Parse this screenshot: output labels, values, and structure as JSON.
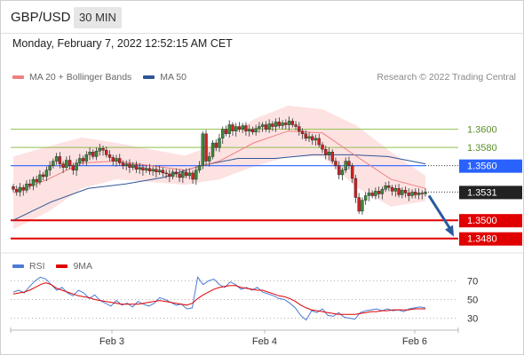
{
  "header": {
    "symbol": "GBP/USD",
    "timeframe": "30 MIN"
  },
  "datetime": "Monday, February 7, 2022 12:52:15 AM CET",
  "copyright": "Research © 2022 Trading Central",
  "colors": {
    "bollinger": "#f08080",
    "ma50": "#2f5597",
    "resistance": "#8fbf4f",
    "pivot": "#2962ff",
    "support": "#e00000",
    "last_price_bg": "#222222",
    "rsi": "#4a7cd6",
    "rsi_ma": "#e00000",
    "arrow": "#2a5aa0"
  },
  "chart_data": [
    {
      "type": "candlestick",
      "title": "GBP/USD",
      "x_tick_labels": [
        "Feb 3",
        "Feb 4",
        "Feb 6"
      ],
      "legend": [
        {
          "name": "MA 20 + Bollinger Bands",
          "color": "#f08080"
        },
        {
          "name": "MA 50",
          "color": "#2f5597"
        }
      ],
      "ylim": [
        1.3468,
        1.3626
      ],
      "levels": [
        {
          "value": 1.36,
          "label": "1.3600",
          "kind": "resistance"
        },
        {
          "value": 1.358,
          "label": "1.3580",
          "kind": "resistance"
        },
        {
          "value": 1.356,
          "label": "1.3560",
          "kind": "pivot"
        },
        {
          "value": 1.3531,
          "label": "1.3531",
          "kind": "last"
        },
        {
          "value": 1.35,
          "label": "1.3500",
          "kind": "support"
        },
        {
          "value": 1.348,
          "label": "1.3480",
          "kind": "support"
        }
      ],
      "series": [
        {
          "name": "GBP/USD",
          "close": [
            1.3534,
            1.3531,
            1.3536,
            1.3533,
            1.354,
            1.3538,
            1.3545,
            1.3542,
            1.355,
            1.3548,
            1.3555,
            1.356,
            1.3565,
            1.357,
            1.3562,
            1.3558,
            1.3566,
            1.356,
            1.3555,
            1.3563,
            1.3568,
            1.3565,
            1.3572,
            1.3575,
            1.357,
            1.3576,
            1.3579,
            1.3577,
            1.3572,
            1.3569,
            1.3565,
            1.3568,
            1.3563,
            1.356,
            1.3562,
            1.3558,
            1.3561,
            1.3556,
            1.3558,
            1.3555,
            1.3557,
            1.3554,
            1.3556,
            1.3553,
            1.3555,
            1.3552,
            1.3551,
            1.3548,
            1.3553,
            1.3551,
            1.3547,
            1.3553,
            1.3549,
            1.3552,
            1.3545,
            1.3555,
            1.356,
            1.3595,
            1.3565,
            1.357,
            1.3585,
            1.358,
            1.359,
            1.36,
            1.3595,
            1.3605,
            1.3598,
            1.3603,
            1.36,
            1.3604,
            1.3598,
            1.36,
            1.3597,
            1.3601,
            1.3603,
            1.3605,
            1.36,
            1.3606,
            1.3603,
            1.3608,
            1.3604,
            1.3607,
            1.3605,
            1.3609,
            1.3605,
            1.3603,
            1.3598,
            1.3595,
            1.359,
            1.3592,
            1.3588,
            1.359,
            1.3583,
            1.3578,
            1.3572,
            1.3575,
            1.3565,
            1.356,
            1.355,
            1.3555,
            1.3565,
            1.356,
            1.3546,
            1.3525,
            1.351,
            1.3522,
            1.3527,
            1.353,
            1.3527,
            1.3532,
            1.3529,
            1.3534,
            1.3538,
            1.3536,
            1.3532,
            1.3535,
            1.3528,
            1.3533,
            1.353,
            1.3527,
            1.3531,
            1.3528,
            1.353,
            1.3529,
            1.3531
          ]
        },
        {
          "name": "MA 50",
          "values": [
            1.35,
            1.352,
            1.3535,
            1.354,
            1.3547,
            1.356,
            1.3568,
            1.3568,
            1.3572,
            1.3572,
            1.357,
            1.3562
          ]
        },
        {
          "name": "MA 20",
          "values": [
            1.353,
            1.3545,
            1.3563,
            1.3565,
            1.356,
            1.3555,
            1.3565,
            1.3585,
            1.3598,
            1.3596,
            1.357,
            1.3545,
            1.3535
          ]
        }
      ]
    },
    {
      "type": "line",
      "title": "RSI",
      "legend": [
        {
          "name": "RSI",
          "color": "#4a7cd6"
        },
        {
          "name": "9MA",
          "color": "#e00000"
        }
      ],
      "y_ticks": [
        70,
        50,
        30
      ],
      "ylim": [
        20,
        80
      ],
      "series": [
        {
          "name": "RSI",
          "values": [
            58,
            60,
            57,
            64,
            70,
            74,
            72,
            66,
            60,
            63,
            57,
            54,
            60,
            57,
            51,
            55,
            49,
            46,
            43,
            49,
            44,
            46,
            42,
            48,
            45,
            43,
            46,
            52,
            50,
            47,
            44,
            45,
            40,
            41,
            74,
            66,
            70,
            72,
            66,
            63,
            69,
            66,
            61,
            63,
            60,
            63,
            58,
            56,
            54,
            51,
            50,
            46,
            41,
            33,
            28,
            38,
            36,
            40,
            33,
            32,
            36,
            31,
            30,
            29,
            36,
            38,
            39,
            40,
            38,
            40,
            38,
            39,
            37,
            40,
            41,
            42,
            41
          ]
        },
        {
          "name": "9MA",
          "values": [
            56,
            57,
            58,
            60,
            63,
            66,
            68,
            66,
            62,
            60,
            58,
            56,
            54,
            53,
            52,
            50,
            49,
            48,
            47,
            46,
            45,
            45,
            45,
            45,
            46,
            47,
            48,
            49,
            48,
            47,
            46,
            45,
            44,
            46,
            51,
            55,
            58,
            61,
            63,
            64,
            65,
            65,
            63,
            62,
            61,
            60,
            60,
            58,
            56,
            54,
            53,
            51,
            48,
            44,
            41,
            39,
            38,
            37,
            36,
            35,
            34,
            34,
            34,
            34,
            35,
            36,
            37,
            37,
            38,
            38,
            39,
            39,
            39,
            39,
            40,
            40,
            40
          ]
        }
      ]
    }
  ],
  "rsi_legend": {
    "rsi": "RSI",
    "ma": "9MA"
  },
  "legend_labels": {
    "bb": "MA 20 + Bollinger Bands",
    "ma50": "MA 50"
  }
}
